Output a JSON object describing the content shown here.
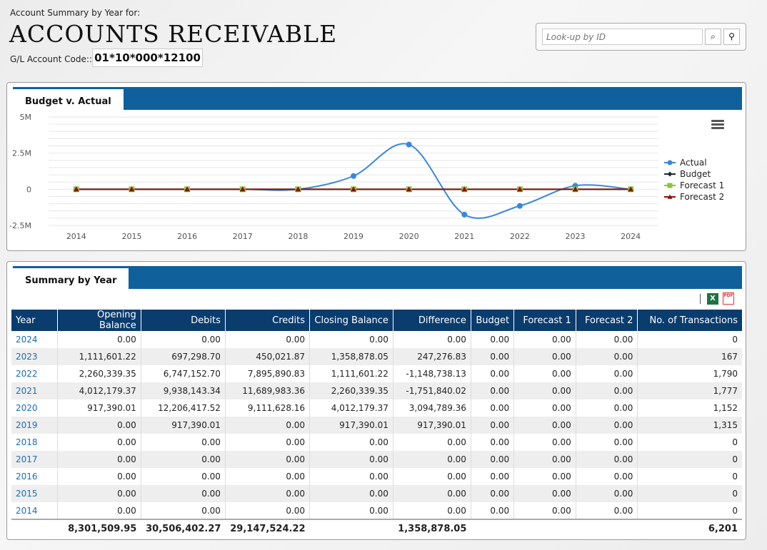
{
  "header": {
    "subtitle": "Account Summary by Year for:",
    "title": "ACCOUNTS RECEIVABLE",
    "gl_label": "G/L Account Code::",
    "gl_code": "01*10*000*12100"
  },
  "lookup": {
    "placeholder": "Look-up by ID",
    "clear_icon": "⌕",
    "search_icon": "⚲"
  },
  "chart_panel": {
    "tab_label": "Budget v. Actual"
  },
  "summary_panel": {
    "tab_label": "Summary by Year"
  },
  "colors": {
    "actual": "#3c86d8",
    "budget": "#1a2a3a",
    "forecast1": "#8cc43c",
    "forecast2": "#8b1010",
    "header_bar": "#0f609b",
    "table_header": "#0a3c6e"
  },
  "chart_data": {
    "type": "line",
    "x": [
      "2014",
      "2015",
      "2016",
      "2017",
      "2018",
      "2019",
      "2020",
      "2021",
      "2022",
      "2023",
      "2024"
    ],
    "ytick_labels": [
      "5M",
      "2.5M",
      "0",
      "-2.5M"
    ],
    "yticks": [
      5000000,
      2500000,
      0,
      -2500000
    ],
    "ylim": [
      -2500000,
      5000000
    ],
    "series": [
      {
        "name": "Actual",
        "values": [
          0,
          0,
          0,
          0,
          0,
          917390.01,
          3094789.36,
          -1751840.02,
          -1148738.13,
          247276.83,
          0
        ]
      },
      {
        "name": "Budget",
        "values": [
          0,
          0,
          0,
          0,
          0,
          0,
          0,
          0,
          0,
          0,
          0
        ]
      },
      {
        "name": "Forecast 1",
        "values": [
          0,
          0,
          0,
          0,
          0,
          0,
          0,
          0,
          0,
          0,
          0
        ]
      },
      {
        "name": "Forecast 2",
        "values": [
          0,
          0,
          0,
          0,
          0,
          0,
          0,
          0,
          0,
          0,
          0
        ]
      }
    ],
    "legend_position": "right",
    "grid": true
  },
  "table": {
    "columns": [
      "Year",
      "Opening Balance",
      "Debits",
      "Credits",
      "Closing Balance",
      "Difference",
      "Budget",
      "Forecast 1",
      "Forecast 2",
      "No. of Transactions"
    ],
    "rows": [
      [
        "2024",
        "0.00",
        "0.00",
        "0.00",
        "0.00",
        "0.00",
        "0.00",
        "0.00",
        "0.00",
        "0"
      ],
      [
        "2023",
        "1,111,601.22",
        "697,298.70",
        "450,021.87",
        "1,358,878.05",
        "247,276.83",
        "0.00",
        "0.00",
        "0.00",
        "167"
      ],
      [
        "2022",
        "2,260,339.35",
        "6,747,152.70",
        "7,895,890.83",
        "1,111,601.22",
        "-1,148,738.13",
        "0.00",
        "0.00",
        "0.00",
        "1,790"
      ],
      [
        "2021",
        "4,012,179.37",
        "9,938,143.34",
        "11,689,983.36",
        "2,260,339.35",
        "-1,751,840.02",
        "0.00",
        "0.00",
        "0.00",
        "1,777"
      ],
      [
        "2020",
        "917,390.01",
        "12,206,417.52",
        "9,111,628.16",
        "4,012,179.37",
        "3,094,789.36",
        "0.00",
        "0.00",
        "0.00",
        "1,152"
      ],
      [
        "2019",
        "0.00",
        "917,390.01",
        "0.00",
        "917,390.01",
        "917,390.01",
        "0.00",
        "0.00",
        "0.00",
        "1,315"
      ],
      [
        "2018",
        "0.00",
        "0.00",
        "0.00",
        "0.00",
        "0.00",
        "0.00",
        "0.00",
        "0.00",
        "0"
      ],
      [
        "2017",
        "0.00",
        "0.00",
        "0.00",
        "0.00",
        "0.00",
        "0.00",
        "0.00",
        "0.00",
        "0"
      ],
      [
        "2016",
        "0.00",
        "0.00",
        "0.00",
        "0.00",
        "0.00",
        "0.00",
        "0.00",
        "0.00",
        "0"
      ],
      [
        "2015",
        "0.00",
        "0.00",
        "0.00",
        "0.00",
        "0.00",
        "0.00",
        "0.00",
        "0.00",
        "0"
      ],
      [
        "2014",
        "0.00",
        "0.00",
        "0.00",
        "0.00",
        "0.00",
        "0.00",
        "0.00",
        "0.00",
        "0"
      ]
    ],
    "totals": [
      "",
      "8,301,509.95",
      "30,506,402.27",
      "29,147,524.22",
      "",
      "1,358,878.05",
      "",
      "",
      "",
      "6,201"
    ]
  }
}
